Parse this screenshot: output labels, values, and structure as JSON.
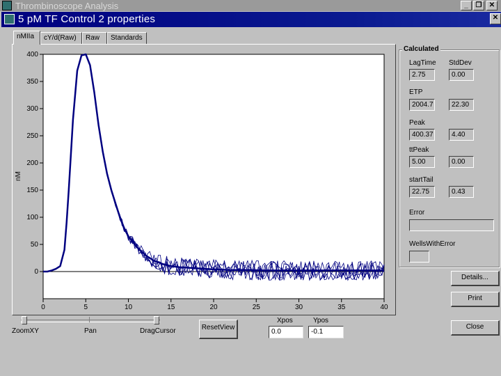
{
  "app": {
    "title": "Thrombinoscope Analysis"
  },
  "dialog": {
    "title": "5 pM TF Control 2 properties"
  },
  "tabs": [
    {
      "label": "nMIIa",
      "active": true
    },
    {
      "label": "cY/d(Raw)",
      "active": false
    },
    {
      "label": "Raw",
      "active": false
    },
    {
      "label": "Standards",
      "active": false
    }
  ],
  "calculated": {
    "title": "Calculated",
    "col_headers": [
      "LagTime",
      "StdDev"
    ],
    "rows": [
      {
        "label": "",
        "value": "2.75",
        "stddev": "0.00"
      },
      {
        "label": "ETP",
        "value": "2004.7",
        "stddev": "22.30"
      },
      {
        "label": "Peak",
        "value": "400.37",
        "stddev": "4.40"
      },
      {
        "label": "ttPeak",
        "value": "5.00",
        "stddev": "0.00"
      },
      {
        "label": "startTail",
        "value": "22.75",
        "stddev": "0.43"
      }
    ],
    "error_label": "Error",
    "error_value": "",
    "wells_label": "WellsWithError",
    "wells_value": ""
  },
  "buttons": {
    "details": "Details...",
    "print": "Print",
    "close": "Close",
    "reset_view": "ResetView"
  },
  "slider": {
    "labels": [
      "ZoomXY",
      "Pan",
      "DragCursor"
    ]
  },
  "xpos": {
    "label": "Xpos",
    "value": "0.0"
  },
  "ypos": {
    "label": "Ypos",
    "value": "-0.1"
  },
  "chart_data": {
    "type": "line",
    "title": "",
    "xlabel": "",
    "ylabel": "nM",
    "xlim": [
      0,
      40
    ],
    "ylim": [
      -50,
      400
    ],
    "x_ticks": [
      0,
      5,
      10,
      15,
      20,
      25,
      30,
      35,
      40
    ],
    "y_ticks": [
      0,
      50,
      100,
      150,
      200,
      250,
      300,
      350,
      400
    ],
    "line_color": "#000080",
    "series": [
      {
        "name": "",
        "x": [
          0,
          0.5,
          1,
          1.5,
          2,
          2.5,
          2.75,
          3,
          3.5,
          4,
          4.5,
          5,
          5.5,
          6,
          6.5,
          7,
          7.5,
          8,
          8.5,
          9,
          9.5,
          10,
          10.5,
          11,
          11.5,
          12,
          12.5,
          13,
          13.5,
          14,
          14.5,
          15,
          16,
          17,
          18,
          19,
          20,
          22,
          24,
          26,
          28,
          30,
          32,
          34,
          36,
          38,
          40
        ],
        "y": [
          0,
          0,
          2,
          5,
          10,
          40,
          90,
          150,
          280,
          370,
          398,
          400,
          380,
          330,
          270,
          220,
          180,
          150,
          125,
          100,
          80,
          65,
          55,
          45,
          38,
          30,
          25,
          20,
          17,
          14,
          12,
          10,
          8,
          7,
          6,
          5,
          4,
          3,
          3,
          2,
          2,
          2,
          2,
          2,
          2,
          2,
          2
        ]
      }
    ]
  }
}
